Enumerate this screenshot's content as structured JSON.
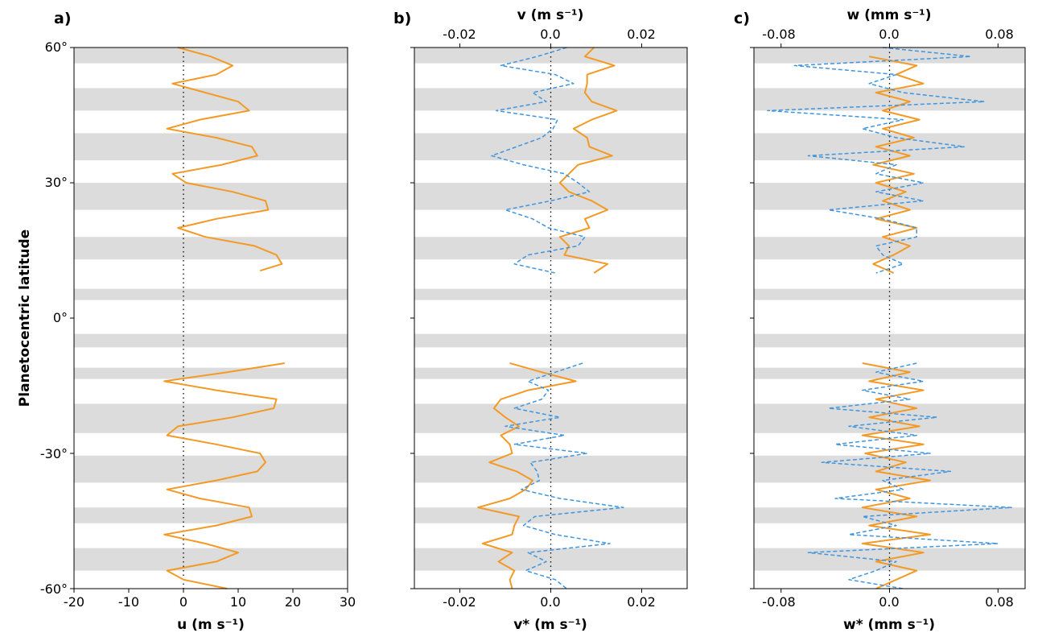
{
  "figure": {
    "ylabel": "Planetocentric latitude",
    "y_tick_labels": [
      "60°",
      "30°",
      "0°",
      "-30°",
      "-60°"
    ],
    "colors": {
      "u_series": "#f39a26",
      "eddy_series": "#3f95de",
      "band": "#dcdcdc",
      "frame": "#000000"
    }
  },
  "chart_data": [
    {
      "panel": "a)",
      "type": "line",
      "xlabel": "u (m s⁻¹)",
      "xlim": [
        -20,
        30
      ],
      "ylim": [
        -60,
        60
      ],
      "x_tick_labels": [
        "-20",
        "-10",
        "0",
        "10",
        "20",
        "30"
      ],
      "shaded_latitude_bands": [
        [
          56.5,
          60
        ],
        [
          46,
          51
        ],
        [
          35,
          41
        ],
        [
          24,
          30
        ],
        [
          13,
          18
        ],
        [
          4,
          6.5
        ],
        [
          -6.5,
          -3.5
        ],
        [
          -13.5,
          -11
        ],
        [
          -25.5,
          -19
        ],
        [
          -36.5,
          -30.5
        ],
        [
          -45.5,
          -42
        ],
        [
          -56,
          -51
        ]
      ],
      "series": [
        {
          "style": "solid",
          "color": "#f39a26",
          "y": [
            60,
            58,
            56,
            54,
            52,
            50,
            48,
            46,
            44,
            42,
            40,
            38,
            36,
            34,
            32,
            30,
            28,
            26,
            24,
            22,
            20,
            18,
            16,
            14,
            12,
            10.5
          ],
          "x": [
            -1,
            5,
            9,
            6,
            -2,
            4,
            10,
            12,
            3,
            -3,
            6,
            12.5,
            13.5,
            7,
            -2,
            0.5,
            9,
            15,
            15.5,
            6,
            -1,
            4,
            13,
            17,
            18,
            14
          ]
        },
        {
          "style": "solid",
          "color": "#f39a26",
          "y": [
            -10,
            -12,
            -14,
            -16,
            -18,
            -20,
            -22,
            -24,
            -26,
            -28,
            -30,
            -32,
            -34,
            -36,
            -38,
            -40,
            -42,
            -44,
            -46,
            -48,
            -50,
            -52,
            -54,
            -56,
            -58,
            -60
          ],
          "x": [
            18.5,
            8,
            -3.5,
            6,
            17,
            16.5,
            9,
            -1,
            -3,
            6,
            14,
            15,
            13.5,
            6,
            -3,
            3,
            12,
            12.5,
            6,
            -3.5,
            4,
            10,
            6,
            -3,
            0,
            8
          ]
        }
      ]
    },
    {
      "panel": "b)",
      "type": "line",
      "xlabel_top": "v (m s⁻¹)",
      "xlabel_bottom": "v* (m s⁻¹)",
      "xlim": [
        -0.03,
        0.03
      ],
      "ylim": [
        -60,
        60
      ],
      "x_tick_labels": [
        "-0.02",
        "0.0",
        "0.02"
      ],
      "x_tick_values": [
        -0.02,
        0.0,
        0.02
      ],
      "series": [
        {
          "style": "solid",
          "color": "#f39a26",
          "y": [
            60,
            58,
            56,
            54,
            52,
            50,
            48,
            46,
            44,
            42,
            40,
            38,
            36,
            34,
            32,
            30,
            28,
            26,
            24,
            22,
            20,
            18,
            16,
            14,
            12,
            10
          ],
          "x": [
            0.0095,
            0.0075,
            0.014,
            0.008,
            0.008,
            0.0075,
            0.009,
            0.0145,
            0.009,
            0.005,
            0.008,
            0.0085,
            0.0135,
            0.006,
            0.004,
            0.002,
            0.004,
            0.009,
            0.0125,
            0.0075,
            0.0085,
            0.002,
            0.004,
            0.003,
            0.0125,
            0.0095
          ]
        },
        {
          "style": "dashed",
          "color": "#3f95de",
          "y": [
            60,
            58,
            56,
            54,
            52,
            50,
            48,
            46,
            44,
            42,
            40,
            38,
            36,
            34,
            32,
            30,
            28,
            26,
            24,
            22,
            20,
            18,
            16,
            14,
            12,
            10
          ],
          "x": [
            0.0035,
            -0.003,
            -0.011,
            0.001,
            0.005,
            -0.004,
            -0.001,
            -0.012,
            0.0015,
            0.0005,
            -0.002,
            -0.0075,
            -0.013,
            -0.006,
            0.003,
            0.006,
            0.0085,
            0.0,
            -0.01,
            -0.004,
            -0.0005,
            0.0075,
            0.006,
            -0.005,
            -0.008,
            0.001
          ]
        },
        {
          "style": "solid",
          "color": "#f39a26",
          "y": [
            -10,
            -12,
            -14,
            -16,
            -18,
            -20,
            -22,
            -24,
            -26,
            -28,
            -30,
            -32,
            -34,
            -36,
            -38,
            -40,
            -42,
            -44,
            -46,
            -48,
            -50,
            -52,
            -54,
            -56,
            -58,
            -60
          ],
          "x": [
            -0.009,
            -0.002,
            0.0055,
            -0.005,
            -0.011,
            -0.0125,
            -0.01,
            -0.007,
            -0.011,
            -0.009,
            -0.0085,
            -0.0135,
            -0.0075,
            -0.004,
            -0.0055,
            -0.009,
            -0.016,
            -0.007,
            -0.008,
            -0.0085,
            -0.015,
            -0.0085,
            -0.0115,
            -0.008,
            -0.009,
            -0.0085
          ]
        },
        {
          "style": "dashed",
          "color": "#3f95de",
          "y": [
            -10,
            -12,
            -14,
            -16,
            -18,
            -20,
            -22,
            -24,
            -26,
            -28,
            -30,
            -32,
            -34,
            -36,
            -38,
            -40,
            -42,
            -44,
            -46,
            -48,
            -50,
            -52,
            -54,
            -56,
            -58,
            -60
          ],
          "x": [
            0.007,
            0.001,
            -0.005,
            -0.0005,
            -0.002,
            -0.008,
            0.002,
            -0.01,
            0.003,
            -0.008,
            0.008,
            -0.0045,
            -0.003,
            -0.0025,
            -0.0065,
            0.002,
            0.016,
            -0.0035,
            -0.006,
            0.001,
            0.013,
            -0.005,
            -0.001,
            -0.0055,
            0.001,
            0.0035
          ]
        }
      ]
    },
    {
      "panel": "c)",
      "type": "line",
      "xlabel_top": "w (mm s⁻¹)",
      "xlabel_bottom": "w* (mm s⁻¹)",
      "xlim": [
        -0.1,
        0.1
      ],
      "ylim": [
        -60,
        60
      ],
      "x_tick_labels": [
        "-0.08",
        "0.0",
        "0.08"
      ],
      "x_tick_values": [
        -0.08,
        0.0,
        0.08
      ],
      "series": [
        {
          "style": "solid",
          "color": "#f39a26",
          "y": [
            58,
            56,
            54,
            52,
            50,
            48,
            46,
            44,
            42,
            40,
            38,
            36,
            34,
            32,
            30,
            28,
            26,
            24,
            22,
            20,
            18,
            16,
            14,
            12,
            10
          ],
          "x": [
            -0.015,
            0.02,
            0.005,
            0.025,
            -0.01,
            0.015,
            -0.005,
            0.022,
            -0.005,
            0.018,
            -0.01,
            0.015,
            -0.012,
            0.018,
            -0.01,
            0.012,
            -0.005,
            0.015,
            -0.01,
            0.02,
            -0.005,
            0.015,
            0.003,
            -0.012,
            0.003
          ]
        },
        {
          "style": "dashed",
          "color": "#3f95de",
          "y": [
            60,
            58,
            56,
            54,
            52,
            50,
            48,
            46,
            44,
            42,
            40,
            38,
            36,
            34,
            32,
            30,
            28,
            26,
            24,
            22,
            20,
            18,
            16,
            14,
            12,
            10
          ],
          "x": [
            -0.005,
            0.06,
            -0.07,
            0.005,
            -0.015,
            0.01,
            0.07,
            -0.09,
            0.01,
            -0.02,
            0.005,
            0.055,
            -0.06,
            0.005,
            -0.01,
            0.025,
            -0.01,
            0.025,
            -0.045,
            -0.005,
            0.02,
            0.02,
            -0.01,
            -0.005,
            0.01,
            -0.01
          ]
        },
        {
          "style": "solid",
          "color": "#f39a26",
          "y": [
            -10,
            -12,
            -14,
            -16,
            -18,
            -20,
            -22,
            -24,
            -26,
            -28,
            -30,
            -32,
            -34,
            -36,
            -38,
            -40,
            -42,
            -44,
            -46,
            -48,
            -50,
            -52,
            -54,
            -56,
            -58,
            -60
          ],
          "x": [
            -0.02,
            0.015,
            -0.015,
            0.025,
            -0.01,
            0.02,
            -0.015,
            0.022,
            -0.02,
            0.025,
            -0.018,
            0.012,
            -0.01,
            0.03,
            -0.01,
            0.015,
            -0.02,
            0.02,
            -0.015,
            0.03,
            -0.02,
            0.025,
            -0.01,
            0.02,
            0.005,
            -0.01
          ]
        },
        {
          "style": "dashed",
          "color": "#3f95de",
          "y": [
            -10,
            -12,
            -14,
            -16,
            -18,
            -20,
            -22,
            -24,
            -26,
            -28,
            -30,
            -32,
            -34,
            -36,
            -38,
            -40,
            -42,
            -44,
            -46,
            -48,
            -50,
            -52,
            -54,
            -56,
            -58,
            -60
          ],
          "x": [
            0.02,
            -0.01,
            0.025,
            -0.02,
            0.015,
            -0.045,
            0.035,
            -0.03,
            0.02,
            -0.04,
            0.03,
            -0.05,
            0.045,
            -0.005,
            0.01,
            -0.04,
            0.09,
            -0.02,
            0.005,
            -0.03,
            0.08,
            -0.06,
            0.005,
            -0.01,
            -0.03,
            0.01
          ]
        }
      ]
    }
  ]
}
